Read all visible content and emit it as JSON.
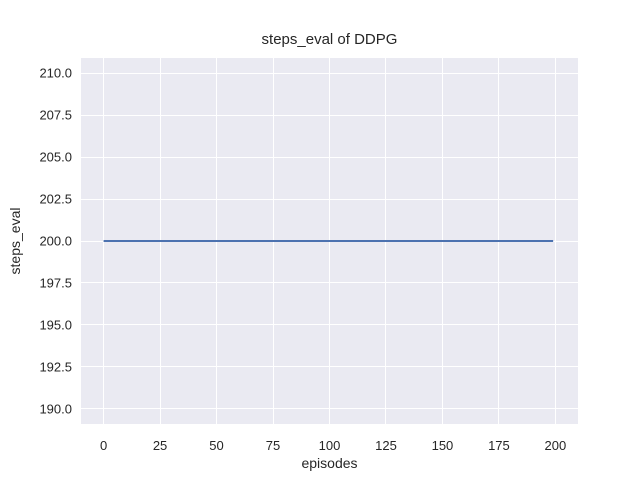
{
  "figure": {
    "background": "#ffffff",
    "text_color": "#262626"
  },
  "chart_data": {
    "type": "line",
    "title": "steps_eval of DDPG",
    "xlabel": "episodes",
    "ylabel": "steps_eval",
    "xlim": [
      -10,
      210
    ],
    "ylim": [
      189.1,
      210.9
    ],
    "xticks": [
      0,
      25,
      50,
      75,
      100,
      125,
      150,
      175,
      200
    ],
    "xtick_labels": [
      "0",
      "25",
      "50",
      "75",
      "100",
      "125",
      "150",
      "175",
      "200"
    ],
    "yticks": [
      190.0,
      192.5,
      195.0,
      197.5,
      200.0,
      202.5,
      205.0,
      207.5,
      210.0
    ],
    "ytick_labels": [
      "190.0",
      "192.5",
      "195.0",
      "197.5",
      "200.0",
      "202.5",
      "205.0",
      "207.5",
      "210.0"
    ],
    "grid": true,
    "grid_color": "#ffffff",
    "plot_background": "#eaeaf2",
    "legend": false,
    "series": [
      {
        "name": "DDPG",
        "x": [
          0,
          199
        ],
        "y": [
          200,
          200
        ],
        "color": "#4c72b0",
        "line_width": 2
      }
    ]
  }
}
